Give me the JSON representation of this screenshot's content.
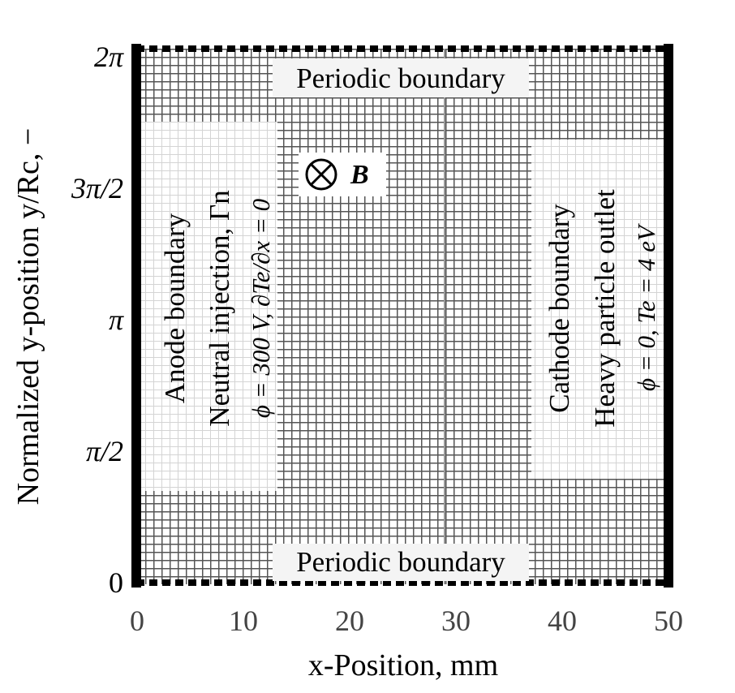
{
  "axes": {
    "x_label": "x-Position, mm",
    "y_label": "Normalized y-position y/Rc, −",
    "x_ticks": [
      {
        "value": 0,
        "label": "0"
      },
      {
        "value": 10,
        "label": "10"
      },
      {
        "value": 20,
        "label": "20"
      },
      {
        "value": 30,
        "label": "30"
      },
      {
        "value": 40,
        "label": "40"
      },
      {
        "value": 50,
        "label": "50"
      }
    ],
    "y_ticks": [
      {
        "label": "0"
      },
      {
        "label": "π/2"
      },
      {
        "label": "π"
      },
      {
        "label": "3π/2"
      },
      {
        "label": "2π"
      }
    ]
  },
  "boundaries": {
    "top": "Periodic boundary",
    "bottom": "Periodic boundary",
    "anode": [
      "Anode boundary",
      "Neutral injection, Γn",
      "ϕ = 300 V,  ∂Te/∂x = 0"
    ],
    "cathode": [
      "Cathode boundary",
      "Heavy particle outlet",
      "ϕ = 0,  Te = 4 eV"
    ]
  },
  "field": {
    "symbol": "⊗",
    "label": "B"
  },
  "colors": {
    "mesh": "#555555",
    "frame": "#000000",
    "label_box": "#f4f4f4"
  }
}
